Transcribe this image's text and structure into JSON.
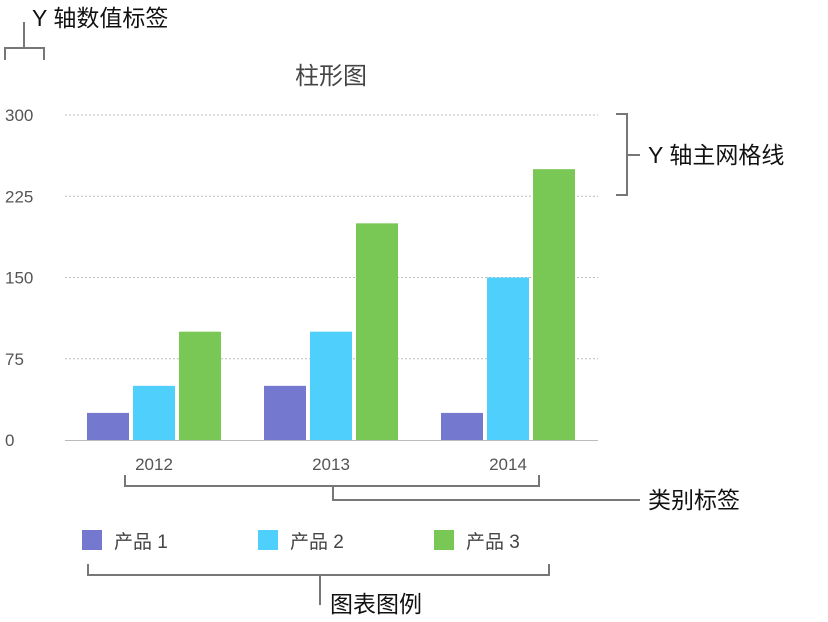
{
  "chart_data": {
    "type": "bar",
    "title": "柱形图",
    "categories": [
      "2012",
      "2013",
      "2014"
    ],
    "series": [
      {
        "name": "产品 1",
        "values": [
          25,
          50,
          25
        ],
        "color": "#7479cf"
      },
      {
        "name": "产品 2",
        "values": [
          50,
          100,
          150
        ],
        "color": "#4fcffc"
      },
      {
        "name": "产品 3",
        "values": [
          100,
          200,
          250
        ],
        "color": "#79c855"
      }
    ],
    "xlabel": "",
    "ylabel": "",
    "ylim": [
      0,
      300
    ],
    "yticks": [
      "0",
      "75",
      "150",
      "225",
      "300"
    ],
    "grid": "horizontal dotted",
    "legend": "bottom"
  },
  "annotations": {
    "y_axis_value_labels": "Y 轴数值标签",
    "y_axis_major_gridlines": "Y 轴主网格线",
    "category_labels": "类别标签",
    "chart_legend": "图表图例"
  }
}
